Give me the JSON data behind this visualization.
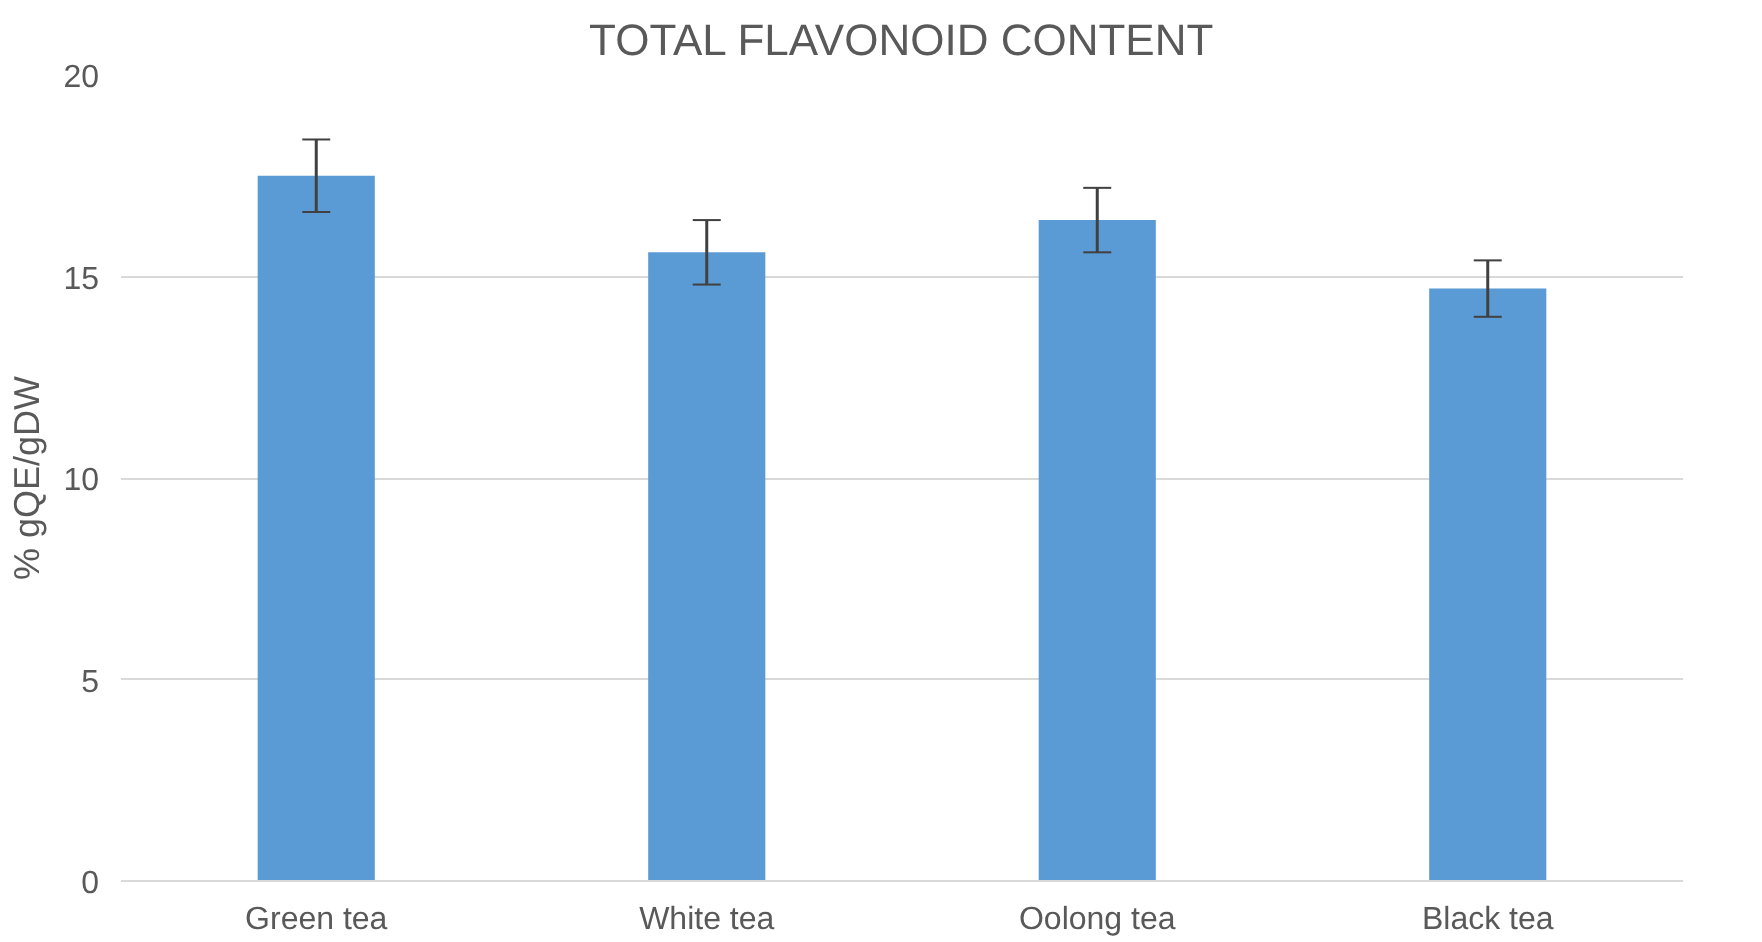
{
  "chart_data": {
    "type": "bar",
    "title": "TOTAL FLAVONOID CONTENT",
    "ylabel": "% gQE/gDW",
    "categories": [
      "Green tea",
      "White tea",
      "Oolong tea",
      "Black tea"
    ],
    "values": [
      17.5,
      15.6,
      16.4,
      14.7
    ],
    "errors": [
      0.9,
      0.8,
      0.8,
      0.7
    ],
    "color": "#5b9bd5",
    "ylim": [
      0,
      20
    ],
    "yticks": [
      0,
      5,
      10,
      15,
      20
    ],
    "grid": "y"
  }
}
